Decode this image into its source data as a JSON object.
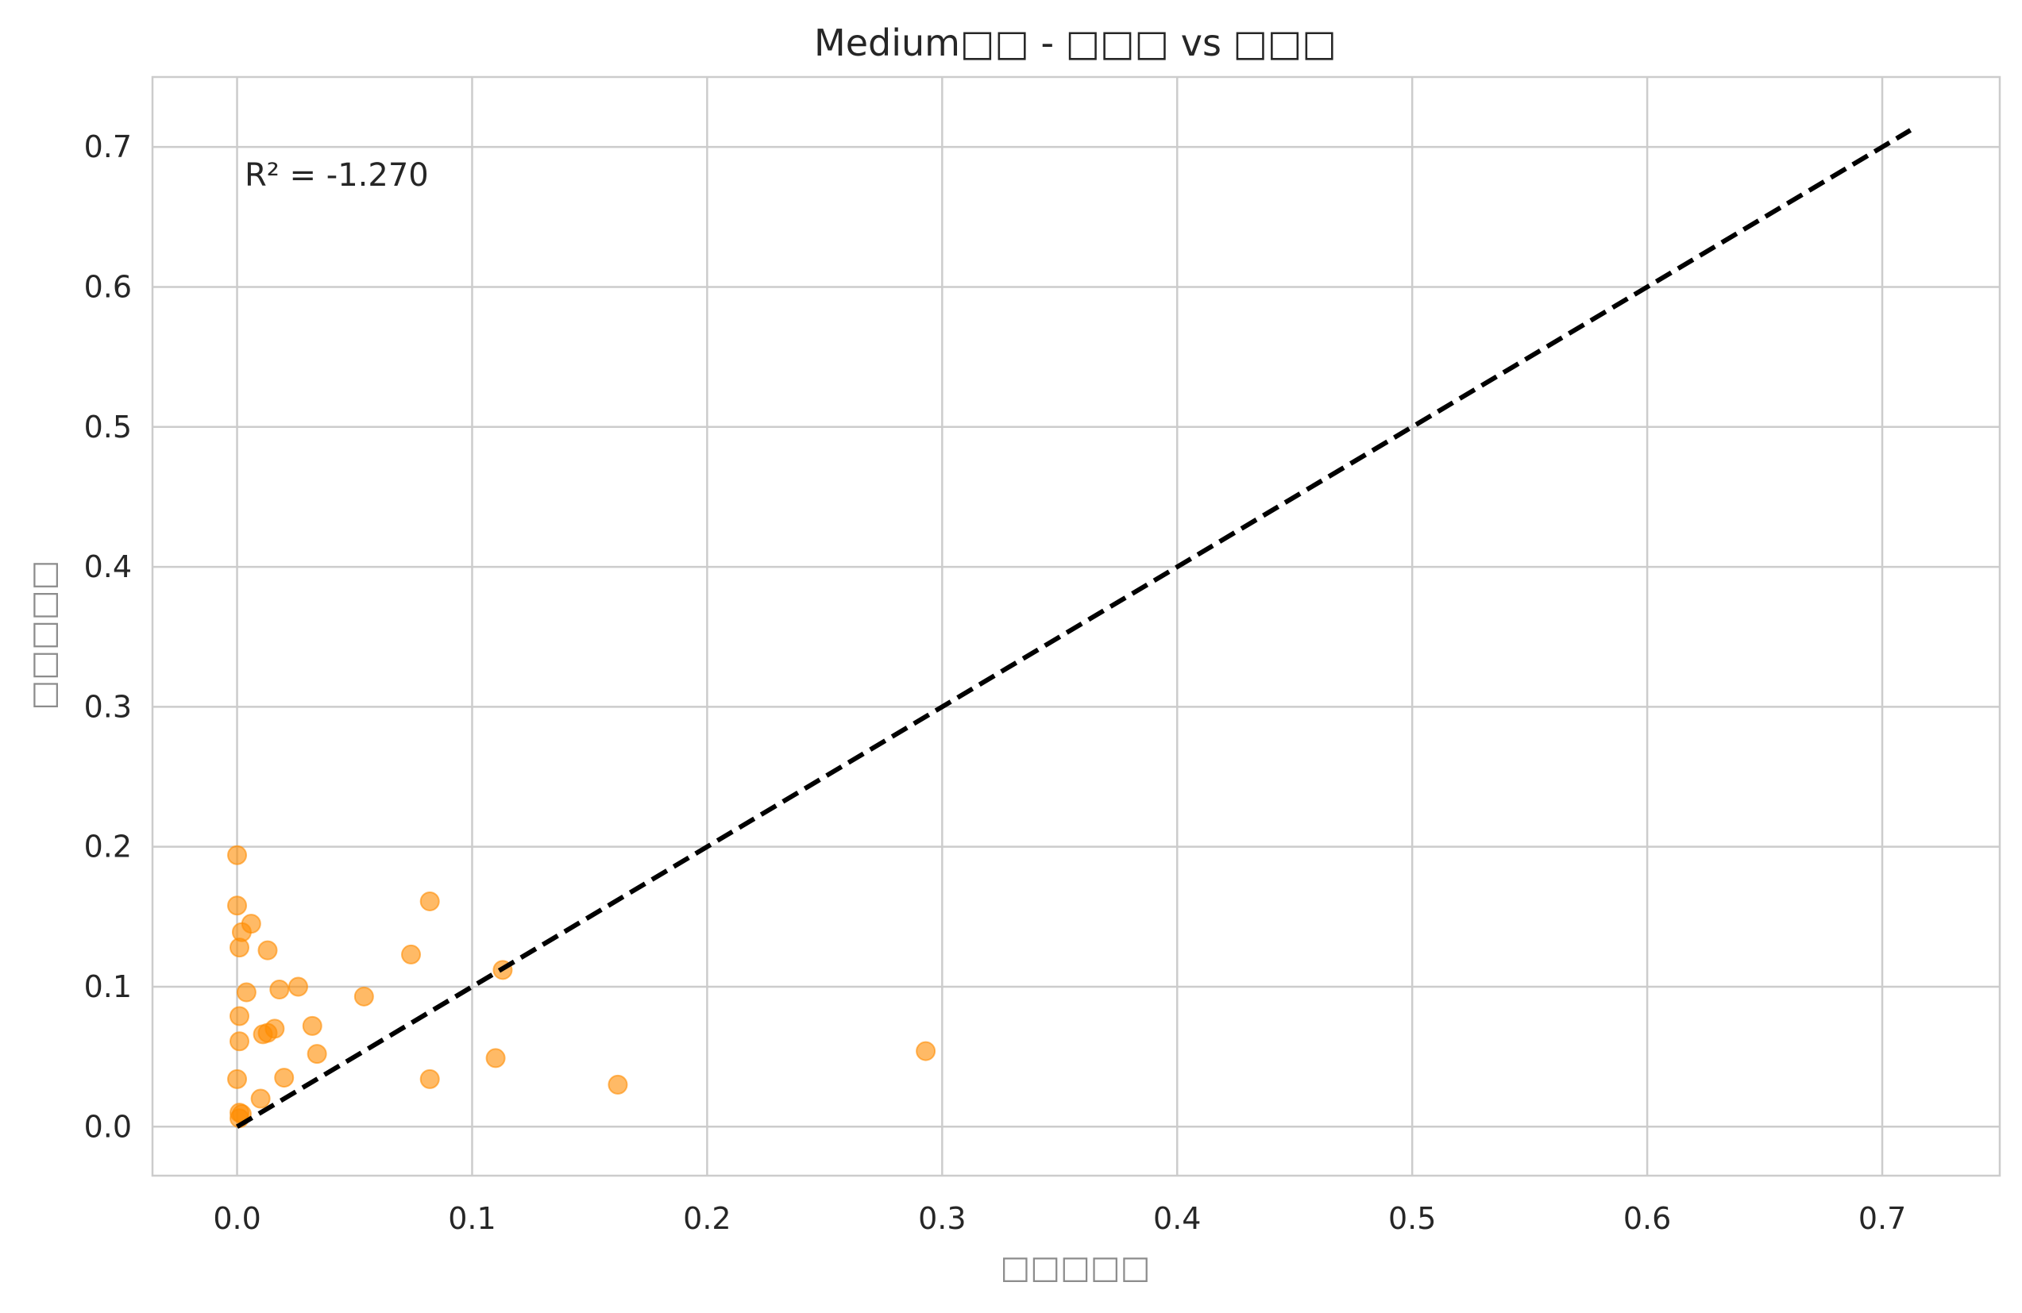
{
  "chart_data": {
    "type": "scatter",
    "title": "Medium□□ - □□□ vs □□□",
    "xlabel": "□□□□□",
    "ylabel": "□□□□□",
    "xlim": [
      -0.036,
      0.75
    ],
    "ylim": [
      -0.035,
      0.75
    ],
    "xticks": [
      0.0,
      0.1,
      0.2,
      0.3,
      0.4,
      0.5,
      0.6,
      0.7
    ],
    "yticks": [
      0.0,
      0.1,
      0.2,
      0.3,
      0.4,
      0.5,
      0.6,
      0.7
    ],
    "xtick_labels": [
      "0.0",
      "0.1",
      "0.2",
      "0.3",
      "0.4",
      "0.5",
      "0.6",
      "0.7"
    ],
    "ytick_labels": [
      "0.0",
      "0.1",
      "0.2",
      "0.3",
      "0.4",
      "0.5",
      "0.6",
      "0.7"
    ],
    "grid": true,
    "marker_color": "#ff8c00",
    "marker_alpha": 0.6,
    "reference_line": {
      "style": "dashed",
      "color": "#000000",
      "x": [
        0.0,
        0.712
      ],
      "y": [
        0.0,
        0.712
      ]
    },
    "annotation": "R² = -1.270",
    "points": [
      {
        "x": 0.0,
        "y": 0.194
      },
      {
        "x": 0.0,
        "y": 0.158
      },
      {
        "x": 0.002,
        "y": 0.139
      },
      {
        "x": 0.006,
        "y": 0.145
      },
      {
        "x": 0.001,
        "y": 0.128
      },
      {
        "x": 0.013,
        "y": 0.126
      },
      {
        "x": 0.082,
        "y": 0.161
      },
      {
        "x": 0.074,
        "y": 0.123
      },
      {
        "x": 0.113,
        "y": 0.112
      },
      {
        "x": 0.004,
        "y": 0.096
      },
      {
        "x": 0.018,
        "y": 0.098
      },
      {
        "x": 0.026,
        "y": 0.1
      },
      {
        "x": 0.054,
        "y": 0.093
      },
      {
        "x": 0.001,
        "y": 0.079
      },
      {
        "x": 0.032,
        "y": 0.072
      },
      {
        "x": 0.016,
        "y": 0.07
      },
      {
        "x": 0.011,
        "y": 0.066
      },
      {
        "x": 0.013,
        "y": 0.067
      },
      {
        "x": 0.001,
        "y": 0.061
      },
      {
        "x": 0.034,
        "y": 0.052
      },
      {
        "x": 0.11,
        "y": 0.049
      },
      {
        "x": 0.293,
        "y": 0.054
      },
      {
        "x": 0.0,
        "y": 0.034
      },
      {
        "x": 0.02,
        "y": 0.035
      },
      {
        "x": 0.082,
        "y": 0.034
      },
      {
        "x": 0.162,
        "y": 0.03
      },
      {
        "x": 0.01,
        "y": 0.02
      },
      {
        "x": 0.001,
        "y": 0.01
      },
      {
        "x": 0.002,
        "y": 0.009
      },
      {
        "x": 0.001,
        "y": 0.006
      }
    ]
  }
}
